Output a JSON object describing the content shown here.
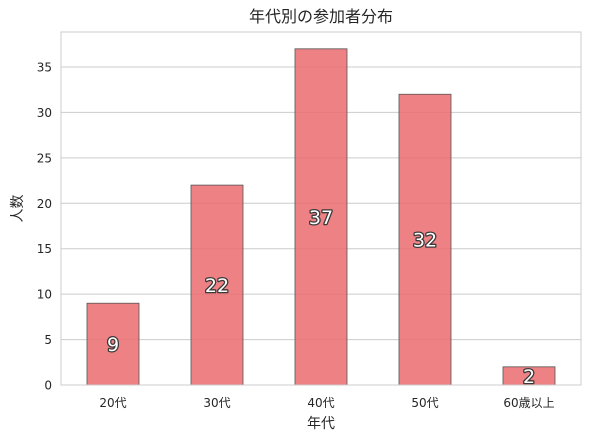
{
  "chart_data": {
    "type": "bar",
    "title": "年代別の参加者分布",
    "xlabel": "年代",
    "ylabel": "人数",
    "categories": [
      "20代",
      "30代",
      "40代",
      "50代",
      "60歳以上"
    ],
    "values": [
      9,
      22,
      37,
      32,
      2
    ],
    "ylim": [
      0,
      38.85
    ],
    "yticks": [
      0,
      5,
      10,
      15,
      20,
      25,
      30,
      35
    ],
    "grid": true,
    "data_labels": [
      "9",
      "22",
      "37",
      "32",
      "2"
    ],
    "colors": {
      "bar_fill": "#ea6b6e",
      "bar_edge": "#555555",
      "grid": "#cccccc",
      "frame": "#cccccc"
    }
  }
}
